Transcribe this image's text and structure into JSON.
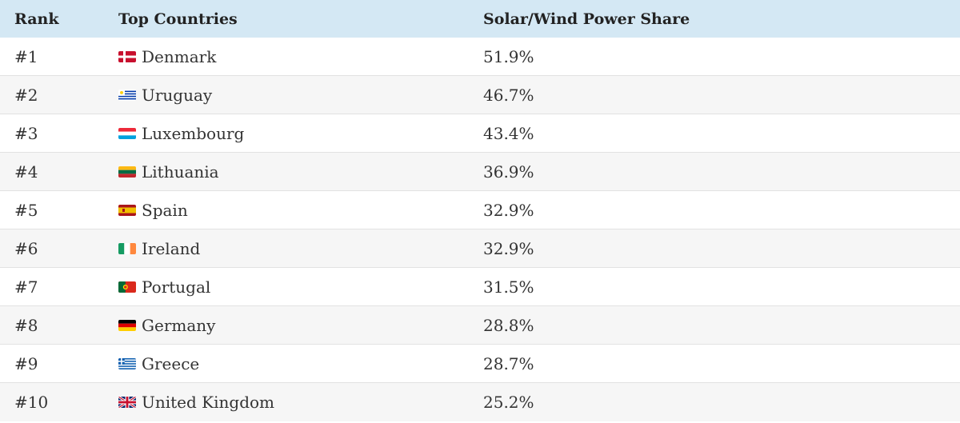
{
  "table": {
    "headers": {
      "rank": "Rank",
      "country": "Top Countries",
      "share": "Solar/Wind Power Share"
    },
    "rows": [
      {
        "rank": "#1",
        "country": "Denmark",
        "share": "51.9%",
        "flag_icon": "denmark-flag-icon"
      },
      {
        "rank": "#2",
        "country": "Uruguay",
        "share": "46.7%",
        "flag_icon": "uruguay-flag-icon"
      },
      {
        "rank": "#3",
        "country": "Luxembourg",
        "share": "43.4%",
        "flag_icon": "luxembourg-flag-icon"
      },
      {
        "rank": "#4",
        "country": "Lithuania",
        "share": "36.9%",
        "flag_icon": "lithuania-flag-icon"
      },
      {
        "rank": "#5",
        "country": "Spain",
        "share": "32.9%",
        "flag_icon": "spain-flag-icon"
      },
      {
        "rank": "#6",
        "country": "Ireland",
        "share": "32.9%",
        "flag_icon": "ireland-flag-icon"
      },
      {
        "rank": "#7",
        "country": "Portugal",
        "share": "31.5%",
        "flag_icon": "portugal-flag-icon"
      },
      {
        "rank": "#8",
        "country": "Germany",
        "share": "28.8%",
        "flag_icon": "germany-flag-icon"
      },
      {
        "rank": "#9",
        "country": "Greece",
        "share": "28.7%",
        "flag_icon": "greece-flag-icon"
      },
      {
        "rank": "#10",
        "country": "United Kingdom",
        "share": "25.2%",
        "flag_icon": "united-kingdom-flag-icon"
      }
    ]
  },
  "colors": {
    "header_background": "#d4e8f4",
    "striped_row_background": "#f6f6f6"
  }
}
